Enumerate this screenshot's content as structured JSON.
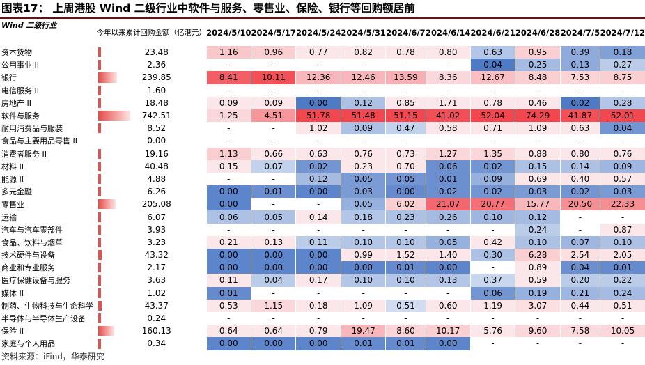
{
  "title": "图表17：  上周港股 Wind 二级行业中软件与服务、零售业、保险、银行等回购额居前",
  "source": "资料来源：iFind，华泰研究",
  "colors": {
    "neg_strong": "#4f7ac6",
    "neg_light": "#dfe7f5",
    "pos_light": "#fbe7e9",
    "pos_strong": "#f2474f",
    "ytd_bar": "#e0524f"
  },
  "chart_data": {
    "type": "heatmap",
    "title": "上周港股 Wind 二级行业中软件与服务、零售业、保险、银行等回购额居前",
    "row_header": "Wind 二级行业",
    "ytd_header": "今年以来累计回购金额（亿港元）",
    "dates": [
      "2024/5/10",
      "2024/5/17",
      "2024/5/24",
      "2024/5/31",
      "2024/6/7",
      "2024/6/14",
      "2024/6/21",
      "2024/6/28",
      "2024/7/5",
      "2024/7/12"
    ],
    "rows": [
      {
        "name": "资本货物",
        "ytd": "23.48",
        "values": [
          "1.16",
          "0.96",
          "0.77",
          "0.82",
          "0.78",
          "0.80",
          "0.63",
          "0.95",
          "0.39",
          "0.18"
        ],
        "z": [
          0.2,
          0.15,
          0,
          0,
          0,
          0,
          -0.3,
          0.15,
          -0.55,
          -0.65
        ]
      },
      {
        "name": "公用事业 II",
        "ytd": "2.36",
        "values": [
          "-",
          "-",
          "-",
          "-",
          "-",
          "-",
          "0.04",
          "0.25",
          "0.13",
          "0.27"
        ],
        "z": [
          null,
          null,
          null,
          null,
          null,
          null,
          -1,
          -0.4,
          -0.55,
          -0.25
        ]
      },
      {
        "name": "银行",
        "ytd": "239.85",
        "values": [
          "8.41",
          "10.11",
          "12.36",
          "12.46",
          "13.59",
          "8.36",
          "12.67",
          "8.48",
          "7.53",
          "8.75"
        ],
        "z": [
          0.85,
          0.95,
          0.3,
          0.3,
          0.35,
          0.1,
          0.25,
          0.15,
          0.12,
          0.15
        ]
      },
      {
        "name": "电信服务 II",
        "ytd": "1.60",
        "values": [
          "-",
          "-",
          "-",
          "-",
          "-",
          "-",
          "-",
          "-",
          "-",
          "-"
        ],
        "z": [
          null,
          null,
          null,
          null,
          null,
          null,
          null,
          null,
          null,
          null
        ]
      },
      {
        "name": "房地产 II",
        "ytd": "18.48",
        "values": [
          "0.09",
          "0.09",
          "0.00",
          "0.12",
          "0.85",
          "1.71",
          "0.78",
          "0.46",
          "0.02",
          "0.28"
        ],
        "z": [
          0,
          0,
          -1,
          -0.35,
          0,
          0,
          0,
          0,
          -1,
          -0.3
        ]
      },
      {
        "name": "软件与服务",
        "ytd": "742.51",
        "values": [
          "1.25",
          "4.51",
          "51.78",
          "51.48",
          "51.15",
          "41.02",
          "52.04",
          "74.29",
          "41.87",
          "52.01"
        ],
        "z": [
          0.1,
          0.5,
          1,
          1,
          1,
          0.95,
          1,
          1,
          0.95,
          1
        ]
      },
      {
        "name": "耐用消费品与服装",
        "ytd": "8.52",
        "values": [
          "-",
          "-",
          "1.02",
          "0.09",
          "0.47",
          "0.58",
          "0.71",
          "1.09",
          "0.63",
          "0.04"
        ],
        "z": [
          null,
          null,
          0,
          -0.35,
          -0.2,
          0,
          0,
          0,
          0,
          -0.75
        ]
      },
      {
        "name": "食品与主要用品零售 II",
        "ytd": "0.00",
        "values": [
          "-",
          "-",
          "-",
          "-",
          "-",
          "-",
          "-",
          "-",
          "-",
          "-"
        ],
        "z": [
          null,
          null,
          null,
          null,
          null,
          null,
          null,
          null,
          null,
          null
        ]
      },
      {
        "name": "消费者服务 II",
        "ytd": "19.16",
        "values": [
          "1.13",
          "0.66",
          "0.63",
          "0.76",
          "0.73",
          "1.27",
          "1.35",
          "0.88",
          "0.80",
          "0.76"
        ],
        "z": [
          0.15,
          0,
          0,
          0,
          0,
          0.1,
          0.1,
          0,
          0,
          0
        ]
      },
      {
        "name": "材料 II",
        "ytd": "40.48",
        "values": [
          "0.15",
          "0.07",
          "0.02",
          "0.23",
          "0.70",
          "0.06",
          "0.02",
          "0.15",
          "0.14",
          "0.09"
        ],
        "z": [
          0,
          -0.2,
          -0.75,
          0,
          0,
          -0.8,
          -0.75,
          -0.35,
          -0.35,
          -0.45
        ]
      },
      {
        "name": "能源 II",
        "ytd": "4.88",
        "values": [
          "-",
          "-",
          "0.12",
          "0.05",
          "0.05",
          "0.01",
          "0.09",
          "0.69",
          "0.40",
          "0.57"
        ],
        "z": [
          null,
          null,
          -0.4,
          -0.7,
          -0.75,
          -0.8,
          -0.5,
          0,
          0,
          0
        ]
      },
      {
        "name": "多元金融",
        "ytd": "6.26",
        "values": [
          "0.00",
          "0.01",
          "0.00",
          "0.03",
          "0.00",
          "0.02",
          "0.02",
          "0.03",
          "0.02",
          "0.03"
        ],
        "z": [
          -0.9,
          -0.8,
          -0.9,
          -0.7,
          -0.85,
          -0.8,
          -0.75,
          -0.7,
          -0.75,
          -0.7
        ]
      },
      {
        "name": "零售业",
        "ytd": "205.08",
        "values": [
          "0.00",
          "-",
          "-",
          "0.05",
          "6.02",
          "21.07",
          "20.77",
          "15.77",
          "20.50",
          "22.33"
        ],
        "z": [
          -0.9,
          null,
          null,
          -0.5,
          0.15,
          0.8,
          0.75,
          0.3,
          0.55,
          0.55
        ]
      },
      {
        "name": "运输",
        "ytd": "6.07",
        "values": [
          "0.06",
          "0.05",
          "0.14",
          "0.18",
          "0.23",
          "0.26",
          "0.10",
          "0.12",
          "-",
          "-"
        ],
        "z": [
          -0.35,
          -0.35,
          0,
          -0.3,
          -0.35,
          -0.4,
          -0.45,
          -0.4,
          null,
          null
        ]
      },
      {
        "name": "汽车与汽车零部件",
        "ytd": "3.93",
        "values": [
          "-",
          "-",
          "-",
          "-",
          "-",
          "-",
          "-",
          "0.24",
          "-",
          "0.87"
        ],
        "z": [
          null,
          null,
          null,
          null,
          null,
          null,
          null,
          -0.25,
          null,
          0
        ]
      },
      {
        "name": "食品、饮料与烟草",
        "ytd": "3.23",
        "values": [
          "0.21",
          "0.13",
          "0.11",
          "0.10",
          "0.10",
          "0.05",
          "0.42",
          "0.10",
          "0.07",
          "0.10"
        ],
        "z": [
          0,
          0,
          -0.25,
          -0.3,
          -0.3,
          -0.5,
          0,
          -0.35,
          -0.45,
          -0.35
        ]
      },
      {
        "name": "技术硬件与设备",
        "ytd": "43.32",
        "values": [
          "0.00",
          "0.00",
          "0.00",
          "0.99",
          "1.52",
          "1.40",
          "0.30",
          "6.28",
          "2.54",
          "2.05"
        ],
        "z": [
          -0.9,
          -0.9,
          -0.9,
          0,
          0,
          0,
          -0.35,
          0.15,
          0.05,
          0.02
        ]
      },
      {
        "name": "商业和专业服务",
        "ytd": "2.17",
        "values": [
          "0.00",
          "0.00",
          "0.00",
          "0.00",
          "0.01",
          "0.00",
          "-",
          "0.89",
          "0.04",
          "0.01"
        ],
        "z": [
          -0.9,
          -0.9,
          -0.9,
          -0.9,
          -0.85,
          -0.9,
          null,
          0,
          -0.8,
          -0.85
        ]
      },
      {
        "name": "医疗保健设备与服务",
        "ytd": "3.63",
        "values": [
          "0.11",
          "0.04",
          "0.17",
          "0.10",
          "0.10",
          "0.13",
          "0.37",
          "0.59",
          "0.20",
          "0.22"
        ],
        "z": [
          0,
          -0.25,
          0,
          -0.3,
          -0.3,
          -0.3,
          -0.15,
          0,
          -0.25,
          -0.25
        ]
      },
      {
        "name": "媒体 II",
        "ytd": "1.02",
        "values": [
          "0.01",
          "-",
          "-",
          "-",
          "-",
          "-",
          "0.06",
          "0.19",
          "0.21",
          "0.24"
        ],
        "z": [
          -0.85,
          null,
          null,
          null,
          null,
          null,
          -0.75,
          -0.5,
          -0.45,
          -0.4
        ]
      },
      {
        "name": "制药、生物科技与生命科学",
        "ytd": "43.37",
        "values": [
          "0.53",
          "1.15",
          "0.18",
          "1.09",
          "0.51",
          "0.60",
          "1.19",
          "3.07",
          "0.44",
          "0.51"
        ],
        "z": [
          0,
          0.1,
          0,
          0,
          -0.1,
          0,
          0,
          0.05,
          0,
          0
        ]
      },
      {
        "name": "半导体与半导体生产设备",
        "ytd": "0.24",
        "values": [
          "-",
          "-",
          "-",
          "-",
          "-",
          "-",
          "-",
          "-",
          "-",
          "-"
        ],
        "z": [
          null,
          null,
          null,
          null,
          null,
          null,
          null,
          null,
          null,
          null
        ]
      },
      {
        "name": "保险 II",
        "ytd": "160.13",
        "values": [
          "0.64",
          "0.64",
          "0.79",
          "19.47",
          "8.60",
          "10.17",
          "5.76",
          "9.60",
          "7.58",
          "10.05"
        ],
        "z": [
          0,
          0,
          0,
          0.3,
          0.12,
          0.15,
          0,
          0.1,
          0.08,
          0.1
        ]
      },
      {
        "name": "家庭与个人用品",
        "ytd": "0.34",
        "values": [
          "0.00",
          "0.00",
          "0.00",
          "0.01",
          "0.01",
          "0.00",
          "-",
          "-",
          "-",
          "-"
        ],
        "z": [
          -0.9,
          -0.9,
          -0.9,
          -0.85,
          -0.85,
          -0.9,
          null,
          null,
          null,
          null
        ]
      }
    ]
  }
}
